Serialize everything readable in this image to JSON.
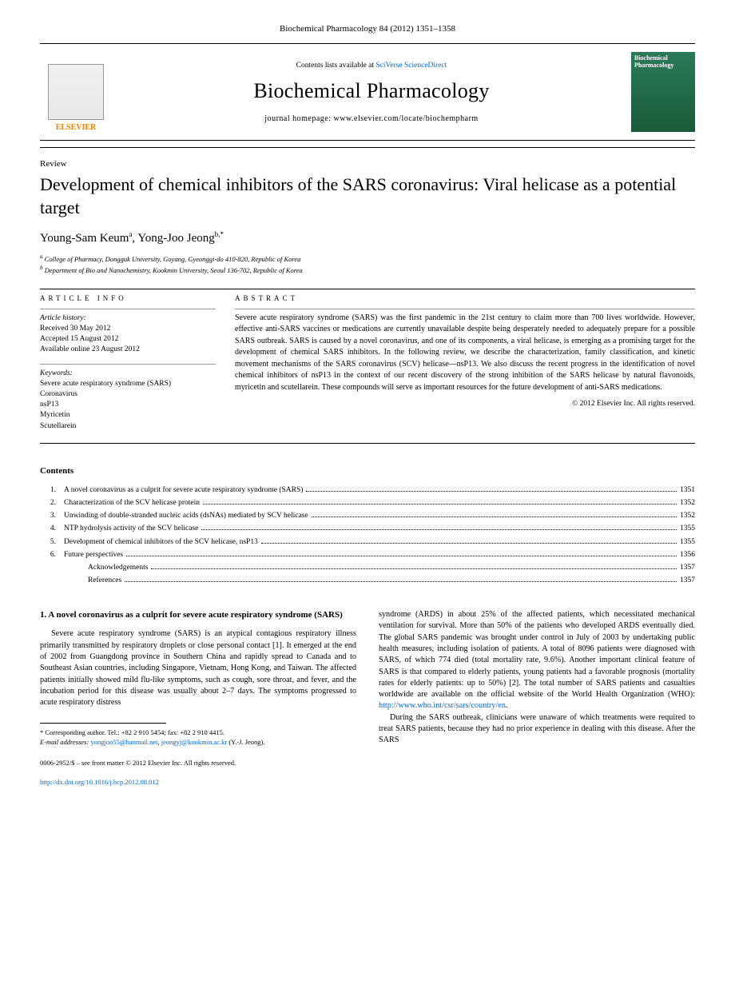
{
  "header": {
    "journal_ref": "Biochemical Pharmacology 84 (2012) 1351–1358",
    "contents_line": "Contents lists available at ",
    "contents_link": "SciVerse ScienceDirect",
    "journal_name": "Biochemical Pharmacology",
    "homepage_label": "journal homepage: www.elsevier.com/locate/biochempharm",
    "publisher_logo": "ELSEVIER",
    "cover_title": "Biochemical Pharmacology"
  },
  "article": {
    "type": "Review",
    "title": "Development of chemical inhibitors of the SARS coronavirus: Viral helicase as a potential target",
    "authors_html": "Young-Sam Keum",
    "author1": "Young-Sam Keum",
    "sup1": "a",
    "author2": "Yong-Joo Jeong",
    "sup2": "b,*",
    "affiliations": {
      "a": "College of Pharmacy, Dongguk University, Goyang, Gyeonggi-do 410-820, Republic of Korea",
      "b": "Department of Bio and Nanochemistry, Kookmin University, Seoul 136-702, Republic of Korea"
    }
  },
  "info": {
    "section_label": "ARTICLE INFO",
    "history_label": "Article history:",
    "received": "Received 30 May 2012",
    "accepted": "Accepted 15 August 2012",
    "online": "Available online 23 August 2012",
    "keywords_label": "Keywords:",
    "keywords": [
      "Severe acute respiratory syndrome (SARS)",
      "Coronavirus",
      "nsP13",
      "Myricetin",
      "Scutellarein"
    ]
  },
  "abstract": {
    "section_label": "ABSTRACT",
    "text": "Severe acute respiratory syndrome (SARS) was the first pandemic in the 21st century to claim more than 700 lives worldwide. However, effective anti-SARS vaccines or medications are currently unavailable despite being desperately needed to adequately prepare for a possible SARS outbreak. SARS is caused by a novel coronavirus, and one of its components, a viral helicase, is emerging as a promising target for the development of chemical SARS inhibitors. In the following review, we describe the characterization, family classification, and kinetic movement mechanisms of the SARS coronavirus (SCV) helicase—nsP13. We also discuss the recent progress in the identification of novel chemical inhibitors of nsP13 in the context of our recent discovery of the strong inhibition of the SARS helicase by natural flavonoids, myricetin and scutellarein. These compounds will serve as important resources for the future development of anti-SARS medications.",
    "copyright": "© 2012 Elsevier Inc. All rights reserved."
  },
  "contents": {
    "heading": "Contents",
    "items": [
      {
        "num": "1.",
        "title": "A novel coronavirus as a culprit for severe acute respiratory syndrome (SARS)",
        "page": "1351",
        "indent": false
      },
      {
        "num": "2.",
        "title": "Characterization of the SCV helicase protein",
        "page": "1352",
        "indent": false
      },
      {
        "num": "3.",
        "title": "Unwinding of double-stranded nucleic acids (dsNAs) mediated by SCV helicase",
        "page": "1352",
        "indent": false
      },
      {
        "num": "4.",
        "title": "NTP hydrolysis activity of the SCV helicase",
        "page": "1355",
        "indent": false
      },
      {
        "num": "5.",
        "title": "Development of chemical inhibitors of the SCV helicase, nsP13",
        "page": "1355",
        "indent": false
      },
      {
        "num": "6.",
        "title": "Future perspectives",
        "page": "1356",
        "indent": false
      },
      {
        "num": "",
        "title": "Acknowledgements",
        "page": "1357",
        "indent": true
      },
      {
        "num": "",
        "title": "References",
        "page": "1357",
        "indent": true
      }
    ]
  },
  "body": {
    "section1_heading": "1. A novel coronavirus as a culprit for severe acute respiratory syndrome (SARS)",
    "col1_p1": "Severe acute respiratory syndrome (SARS) is an atypical contagious respiratory illness primarily transmitted by respiratory droplets or close personal contact [1]. It emerged at the end of 2002 from Guangdong province in Southern China and rapidly spread to Canada and to Southeast Asian countries, including Singapore, Vietnam, Hong Kong, and Taiwan. The affected patients initially showed mild flu-like symptoms, such as cough, sore throat, and fever, and the incubation period for this disease was usually about 2–7 days. The symptoms progressed to acute respiratory distress",
    "col2_p1": "syndrome (ARDS) in about 25% of the affected patients, which necessitated mechanical ventilation for survival. More than 50% of the patients who developed ARDS eventually died. The global SARS pandemic was brought under control in July of 2003 by undertaking public health measures, including isolation of patients. A total of 8096 patients were diagnosed with SARS, of which 774 died (total mortality rate, 9.6%). Another important clinical feature of SARS is that compared to elderly patients, young patients had a favorable prognosis (mortality rates for elderly patients: up to 50%) [2]. The total number of SARS patients and casualties worldwide are available on the official website of the World Health Organization (WHO): ",
    "who_link": "http://www.who.int/csr/sars/country/en",
    "col2_p1_end": ".",
    "col2_p2": "During the SARS outbreak, clinicians were unaware of which treatments were required to treat SARS patients, because they had no prior experience in dealing with this disease. After the SARS"
  },
  "footnote": {
    "corr": "* Corresponding author. Tel.: +82 2 910 5454; fax: +82 2 910 4415.",
    "email_label": "E-mail addresses: ",
    "email1": "yongjoo55@hanmail.net",
    "email_sep": ", ",
    "email2": "jeongyj@kookmin.ac.kr",
    "email_suffix": " (Y.-J. Jeong)."
  },
  "footer": {
    "line1": "0006-2952/$ – see front matter © 2012 Elsevier Inc. All rights reserved.",
    "doi": "http://dx.doi.org/10.1016/j.bcp.2012.08.012"
  },
  "colors": {
    "link": "#0066cc",
    "elsevier": "#e98300",
    "cover_bg": "#2a7a5a"
  }
}
